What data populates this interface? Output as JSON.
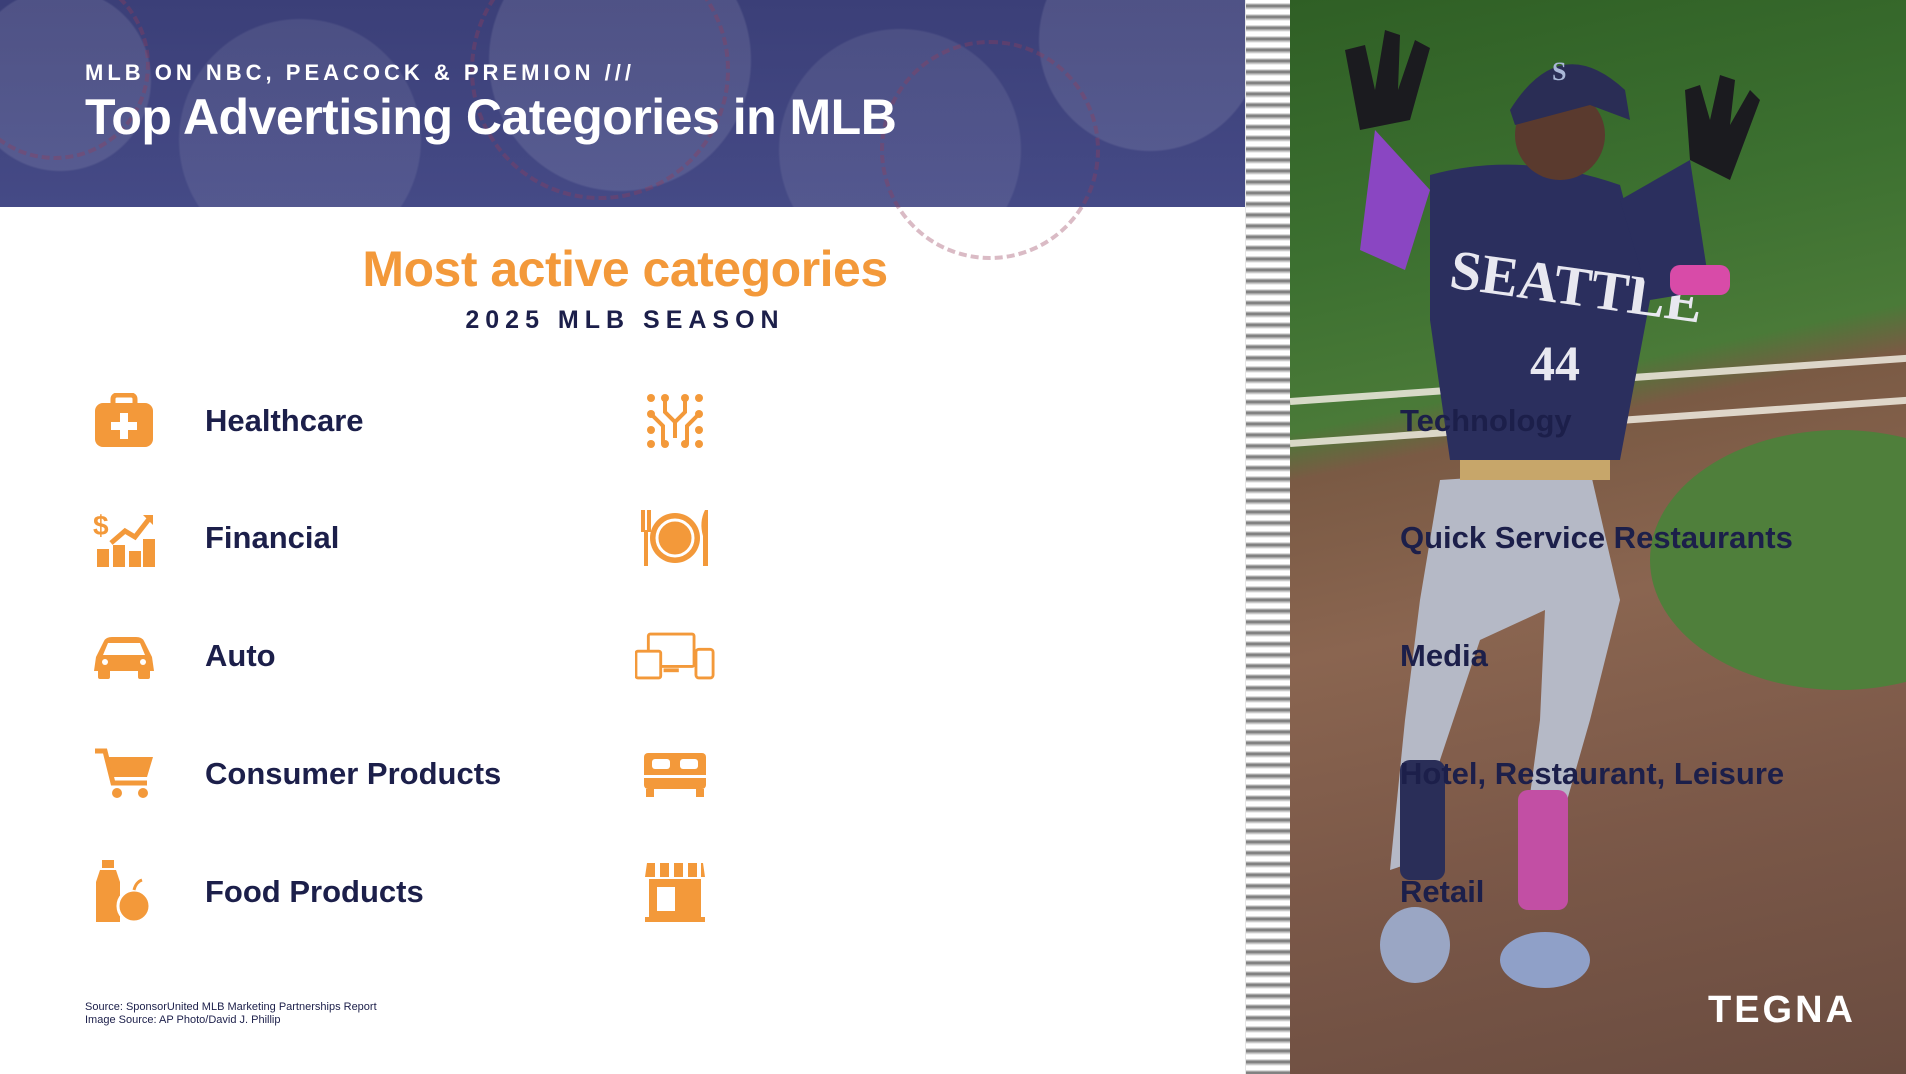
{
  "header": {
    "kicker": "MLB ON NBC, PEACOCK & PREMION ///",
    "title": "Top Advertising Categories in MLB"
  },
  "main": {
    "heading": "Most active categories",
    "subheading": "2025 MLB SEASON"
  },
  "categories_left": [
    {
      "label": "Healthcare",
      "icon": "medical-kit-icon"
    },
    {
      "label": "Financial",
      "icon": "finance-growth-icon"
    },
    {
      "label": "Auto",
      "icon": "car-icon"
    },
    {
      "label": "Consumer Products",
      "icon": "shopping-cart-icon"
    },
    {
      "label": "Food Products",
      "icon": "bottle-apple-icon"
    }
  ],
  "categories_right": [
    {
      "label": "Technology",
      "icon": "circuit-icon"
    },
    {
      "label": "Quick Service Restaurants",
      "icon": "plate-cutlery-icon"
    },
    {
      "label": "Media",
      "icon": "devices-icon"
    },
    {
      "label": "Hotel, Restaurant, Leisure",
      "icon": "bed-icon"
    },
    {
      "label": "Retail",
      "icon": "storefront-icon"
    }
  ],
  "footer": {
    "source_line": "Source: SponsorUnited MLB Marketing Partnerships Report",
    "image_source_line": "Image Source: AP Photo/David J. Phillip",
    "brand": "TEGNA"
  },
  "colors": {
    "accent_orange": "#f3993a",
    "navy": "#1c1f4a",
    "banner_purple": "#3f437e"
  }
}
